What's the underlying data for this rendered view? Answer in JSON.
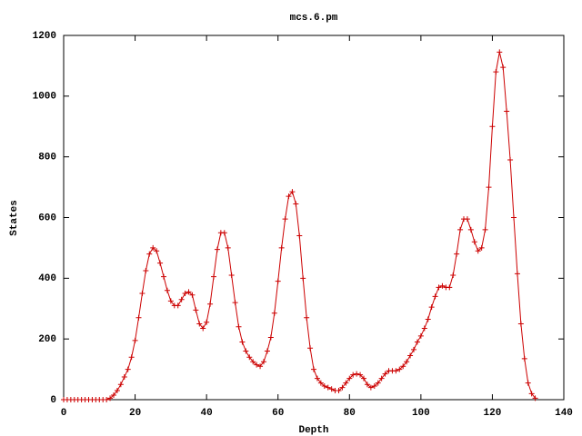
{
  "chart_data": {
    "type": "line",
    "title": "mcs.6.pm",
    "xlabel": "Depth",
    "ylabel": "States",
    "xlim": [
      0,
      140
    ],
    "xticks": [
      0,
      20,
      40,
      60,
      80,
      100,
      120,
      140
    ],
    "ylim": [
      0,
      1200
    ],
    "yticks": [
      0,
      200,
      400,
      600,
      800,
      1000,
      1200
    ],
    "x": [
      0,
      1,
      2,
      3,
      4,
      5,
      6,
      7,
      8,
      9,
      10,
      11,
      12,
      13,
      14,
      15,
      16,
      17,
      18,
      19,
      20,
      21,
      22,
      23,
      24,
      25,
      26,
      27,
      28,
      29,
      30,
      31,
      32,
      33,
      34,
      35,
      36,
      37,
      38,
      39,
      40,
      41,
      42,
      43,
      44,
      45,
      46,
      47,
      48,
      49,
      50,
      51,
      52,
      53,
      54,
      55,
      56,
      57,
      58,
      59,
      60,
      61,
      62,
      63,
      64,
      65,
      66,
      67,
      68,
      69,
      70,
      71,
      72,
      73,
      74,
      75,
      76,
      77,
      78,
      79,
      80,
      81,
      82,
      83,
      84,
      85,
      86,
      87,
      88,
      89,
      90,
      91,
      92,
      93,
      94,
      95,
      96,
      97,
      98,
      99,
      100,
      101,
      102,
      103,
      104,
      105,
      106,
      107,
      108,
      109,
      110,
      111,
      112,
      113,
      114,
      115,
      116,
      117,
      118,
      119,
      120,
      121,
      122,
      123,
      124,
      125,
      126,
      127,
      128,
      129,
      130,
      131,
      132
    ],
    "series": [
      {
        "color": "#cc0000",
        "values": [
          0,
          0,
          0,
          0,
          0,
          0,
          0,
          0,
          0,
          0,
          0,
          0,
          0,
          5,
          15,
          30,
          50,
          75,
          100,
          140,
          195,
          270,
          350,
          425,
          480,
          500,
          490,
          450,
          405,
          360,
          325,
          310,
          310,
          330,
          350,
          355,
          345,
          295,
          250,
          235,
          255,
          315,
          405,
          495,
          550,
          550,
          500,
          410,
          320,
          240,
          190,
          160,
          140,
          125,
          115,
          110,
          125,
          160,
          205,
          285,
          390,
          500,
          595,
          670,
          685,
          645,
          540,
          400,
          270,
          170,
          100,
          70,
          55,
          45,
          40,
          35,
          30,
          30,
          40,
          55,
          70,
          82,
          85,
          82,
          70,
          50,
          40,
          45,
          55,
          70,
          85,
          95,
          95,
          95,
          100,
          110,
          125,
          145,
          165,
          190,
          210,
          235,
          265,
          305,
          340,
          370,
          375,
          370,
          370,
          410,
          480,
          560,
          595,
          595,
          560,
          520,
          490,
          500,
          560,
          700,
          900,
          1080,
          1145,
          1095,
          950,
          790,
          600,
          415,
          250,
          135,
          55,
          20,
          5
        ]
      }
    ]
  }
}
